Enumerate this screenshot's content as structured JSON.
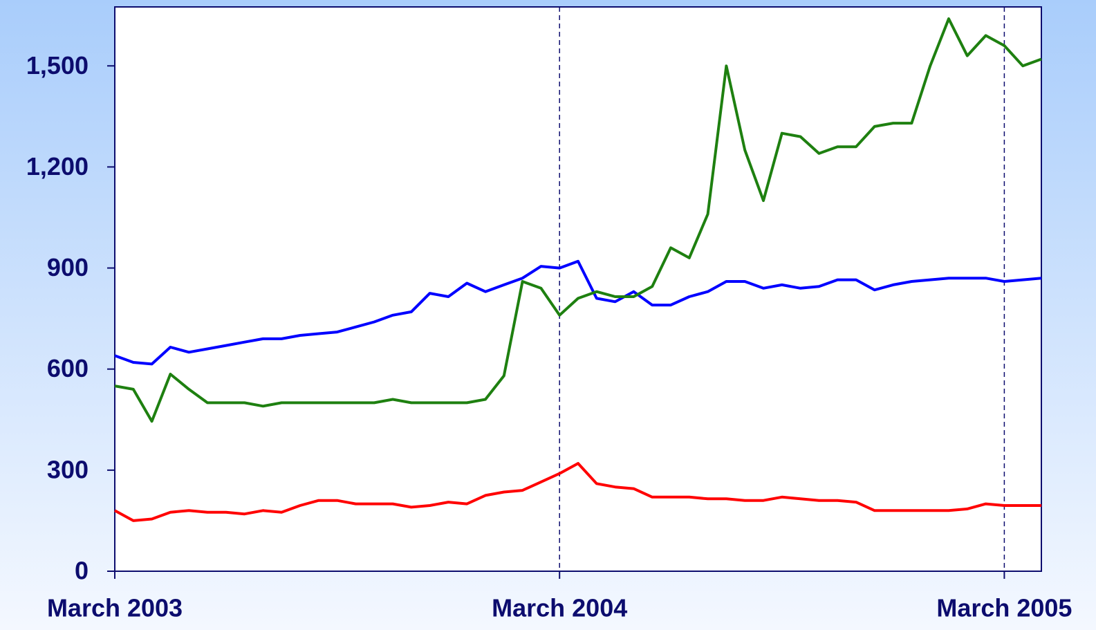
{
  "chart_data": {
    "type": "line",
    "x": [
      0,
      0.5,
      1,
      1.5,
      2,
      2.5,
      3,
      3.5,
      4,
      4.5,
      5,
      5.5,
      6,
      6.5,
      7,
      7.5,
      8,
      8.5,
      9,
      9.5,
      10,
      10.5,
      11,
      11.5,
      12,
      12.5,
      13,
      13.5,
      14,
      14.5,
      15,
      15.5,
      16,
      16.5,
      17,
      17.5,
      18,
      18.5,
      19,
      19.5,
      20,
      20.5,
      21,
      21.5,
      22,
      22.5,
      23,
      23.5,
      24,
      24.5,
      25
    ],
    "series": [
      {
        "color": "#0000ff",
        "values": [
          640,
          620,
          615,
          665,
          650,
          660,
          670,
          680,
          690,
          690,
          700,
          705,
          710,
          725,
          740,
          760,
          770,
          825,
          815,
          855,
          830,
          850,
          870,
          905,
          900,
          920,
          810,
          800,
          830,
          790,
          790,
          815,
          830,
          860,
          860,
          840,
          850,
          840,
          845,
          865,
          865,
          835,
          850,
          860,
          865,
          870,
          870,
          870,
          860,
          865,
          870
        ]
      },
      {
        "color": "#1e8010",
        "values": [
          550,
          540,
          445,
          585,
          540,
          500,
          500,
          500,
          490,
          500,
          500,
          500,
          500,
          500,
          500,
          510,
          500,
          500,
          500,
          500,
          510,
          580,
          860,
          840,
          760,
          810,
          830,
          815,
          815,
          845,
          960,
          930,
          1060,
          1500,
          1250,
          1100,
          1300,
          1290,
          1240,
          1260,
          1260,
          1320,
          1330,
          1330,
          1500,
          1640,
          1530,
          1590,
          1560,
          1500,
          1520
        ]
      },
      {
        "color": "#ff0000",
        "values": [
          180,
          150,
          155,
          175,
          180,
          175,
          175,
          170,
          180,
          175,
          195,
          210,
          210,
          200,
          200,
          200,
          190,
          195,
          205,
          200,
          225,
          235,
          240,
          265,
          290,
          320,
          260,
          250,
          245,
          220,
          220,
          220,
          215,
          215,
          210,
          210,
          220,
          215,
          210,
          210,
          205,
          180,
          180,
          180,
          180,
          180,
          185,
          200,
          195,
          195,
          195
        ]
      }
    ],
    "xlim": [
      0,
      25
    ],
    "xticks": [
      {
        "value": 0,
        "label": "March 2003"
      },
      {
        "value": 12,
        "label": "March 2004"
      },
      {
        "value": 24,
        "label": "March 2005"
      }
    ],
    "ylim": [
      0,
      1675
    ],
    "yticks": [
      0,
      300,
      600,
      900,
      {
        "value": 1200,
        "label": "1,200"
      },
      {
        "value": 1500,
        "label": "1,500"
      }
    ]
  }
}
